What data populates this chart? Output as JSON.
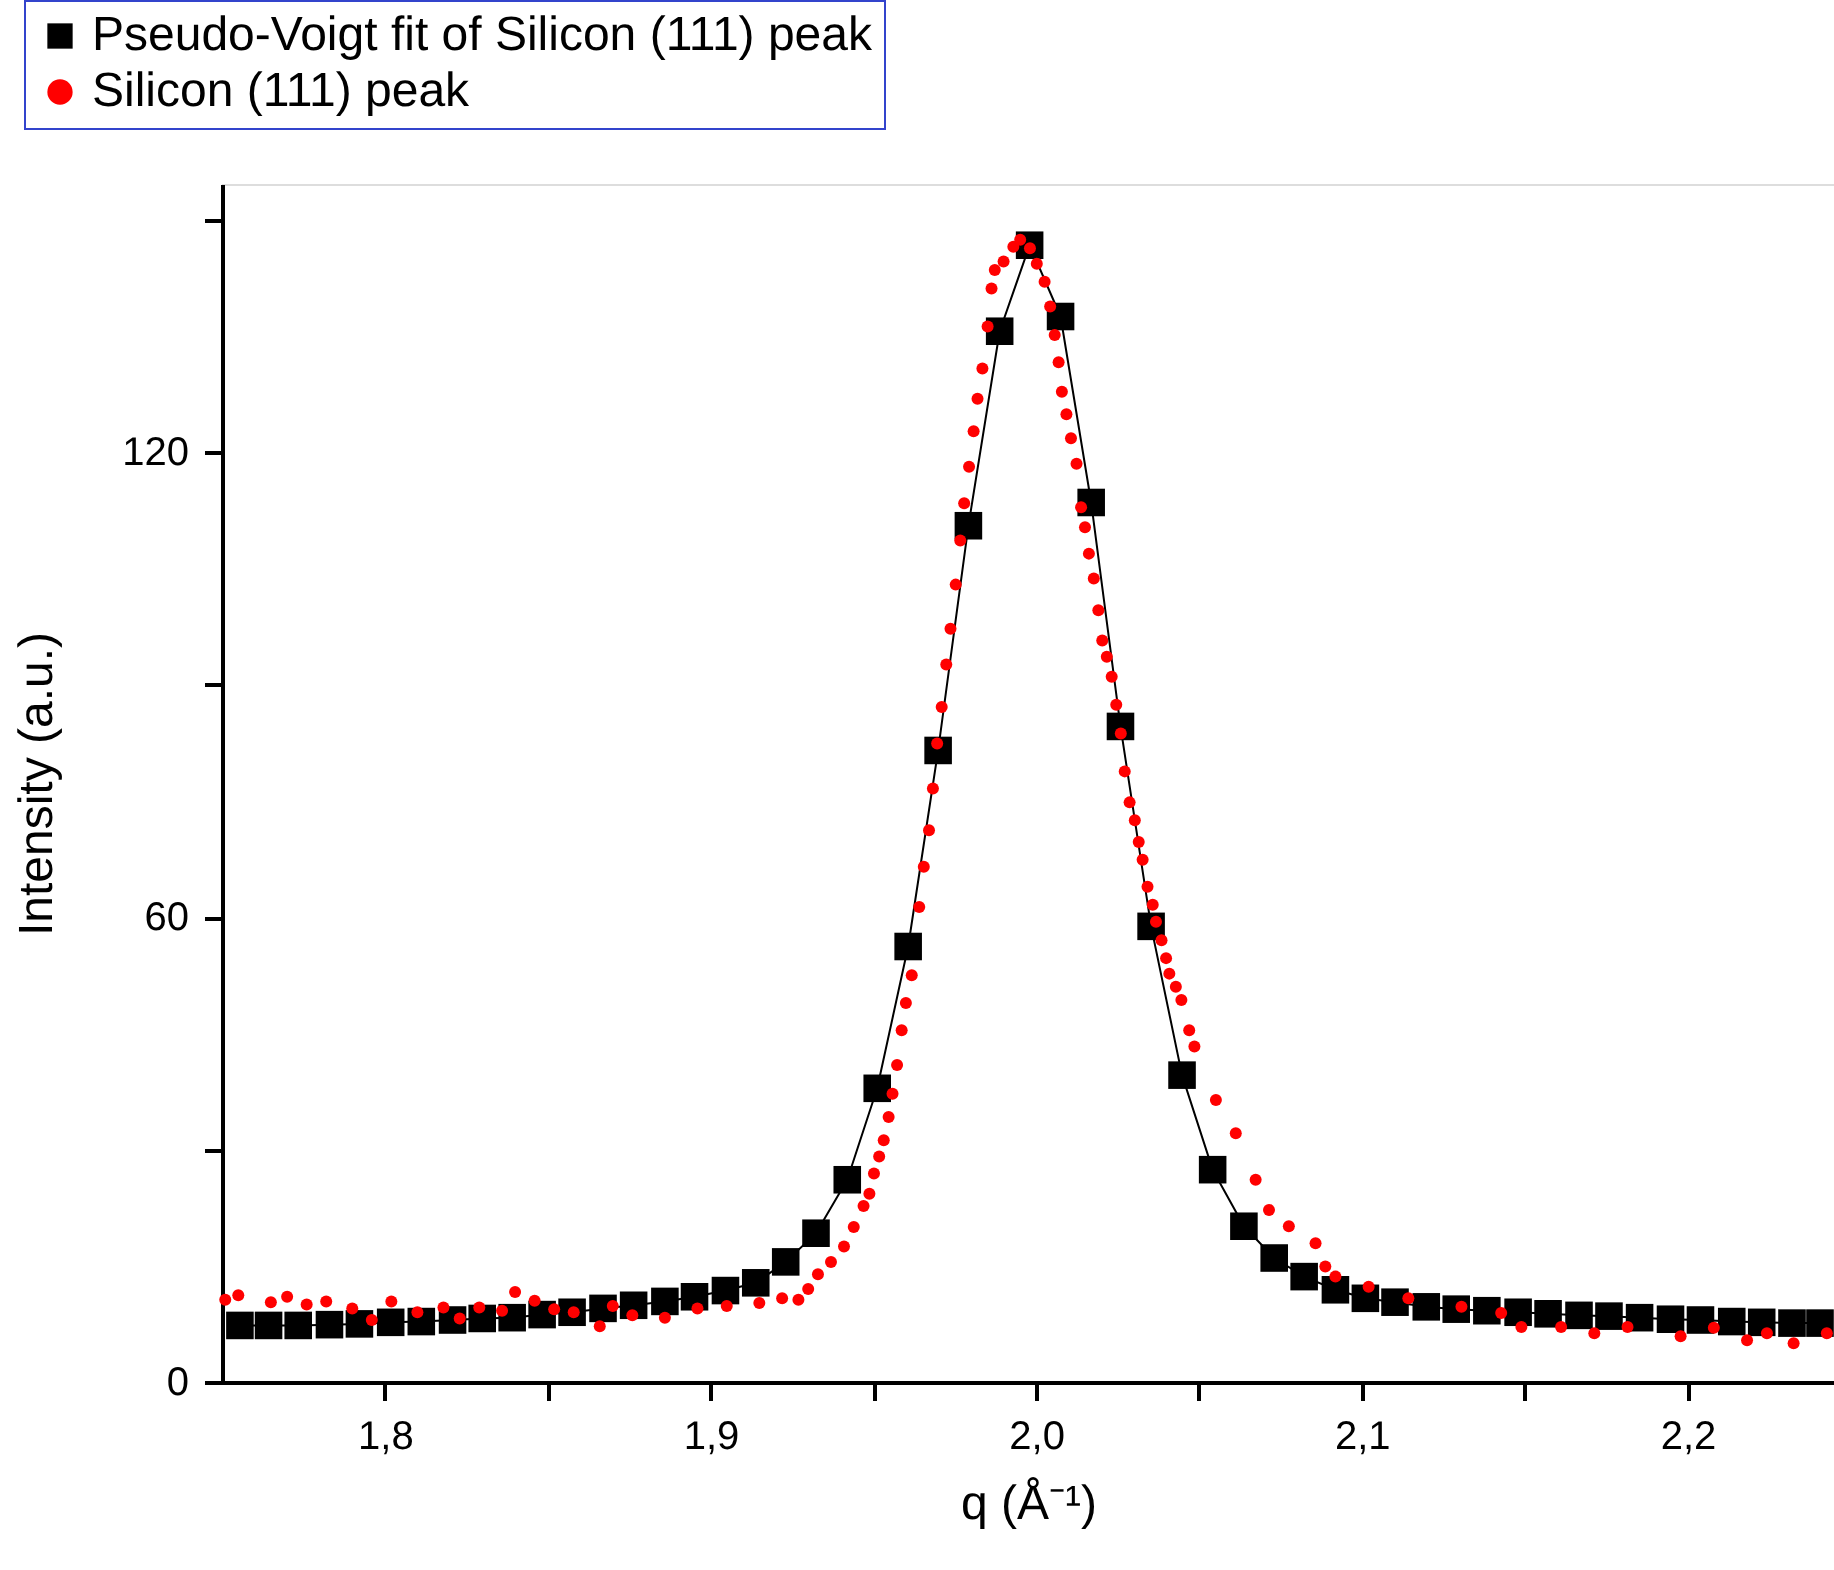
{
  "chart_data": {
    "type": "scatter",
    "xlabel": "q (Å⁻¹)",
    "ylabel": "Intensity (a.u.)",
    "xlim": [
      1.75,
      2.245
    ],
    "ylim": [
      0,
      154.6
    ],
    "xticks": [
      {
        "value": 1.8,
        "label": "1,8"
      },
      {
        "value": 1.85,
        "label": null
      },
      {
        "value": 1.9,
        "label": "1,9"
      },
      {
        "value": 1.95,
        "label": null
      },
      {
        "value": 2.0,
        "label": "2,0"
      },
      {
        "value": 2.05,
        "label": null
      },
      {
        "value": 2.1,
        "label": "2,1"
      },
      {
        "value": 2.15,
        "label": null
      },
      {
        "value": 2.2,
        "label": "2,2"
      }
    ],
    "yticks": [
      0,
      {
        "value": 30,
        "label": null
      },
      60,
      {
        "value": 90,
        "label": null
      },
      120,
      {
        "value": 150,
        "label": null
      }
    ],
    "legend": "top left",
    "grid": false,
    "series": [
      {
        "name": "Pseudo-Voigt fit of Silicon (111) peak",
        "type": "line",
        "marker": "square",
        "line_style": "solid",
        "color": "#000000",
        "x": [
          1.7555,
          1.7643,
          1.7734,
          1.783,
          1.7922,
          1.8018,
          1.8112,
          1.8208,
          1.8299,
          1.8391,
          1.8483,
          1.8575,
          1.867,
          1.8764,
          1.886,
          1.8951,
          1.9046,
          1.9139,
          1.9231,
          1.9324,
          1.942,
          1.9512,
          1.9607,
          1.9699,
          1.9792,
          1.9888,
          1.998,
          2.0075,
          2.0169,
          2.0259,
          2.0353,
          2.0448,
          2.0542,
          2.0638,
          2.0731,
          2.0823,
          2.0919,
          2.1011,
          2.1102,
          2.1198,
          2.129,
          2.1384,
          2.148,
          2.1572,
          2.1667,
          2.1759,
          2.1853,
          2.1948,
          2.204,
          2.2136,
          2.2228,
          2.2321,
          2.2407
        ],
        "values": [
          7.3,
          7.3,
          7.3,
          7.4,
          7.5,
          7.7,
          7.8,
          8.0,
          8.2,
          8.3,
          8.7,
          9.0,
          9.5,
          9.9,
          10.4,
          11.0,
          11.8,
          12.8,
          15.5,
          19.2,
          26.1,
          37.9,
          56.2,
          81.5,
          110.5,
          135.6,
          146.7,
          137.5,
          113.5,
          84.6,
          58.8,
          39.6,
          27.4,
          20.1,
          16.0,
          13.6,
          11.9,
          10.8,
          10.3,
          9.7,
          9.4,
          9.2,
          9.0,
          8.8,
          8.6,
          8.5,
          8.3,
          8.1,
          8.0,
          7.8,
          7.7,
          7.6,
          7.6
        ]
      },
      {
        "name": "Silicon (111) peak",
        "type": "scatter",
        "marker": "circle",
        "color": "#ff0000",
        "x": [
          1.751,
          1.755,
          1.765,
          1.77,
          1.776,
          1.782,
          1.79,
          1.796,
          1.802,
          1.81,
          1.818,
          1.823,
          1.829,
          1.836,
          1.84,
          1.846,
          1.852,
          1.858,
          1.866,
          1.87,
          1.876,
          1.886,
          1.896,
          1.905,
          1.915,
          1.922,
          1.927,
          1.93,
          1.933,
          1.937,
          1.941,
          1.944,
          1.947,
          1.9488,
          1.9502,
          1.9518,
          1.9532,
          1.9547,
          1.9559,
          1.9573,
          1.9587,
          1.96,
          1.9618,
          1.9641,
          1.9655,
          1.9671,
          1.9683,
          1.9696,
          1.971,
          1.9724,
          1.9737,
          1.9753,
          1.9767,
          1.9779,
          1.9794,
          1.9808,
          1.982,
          1.9835,
          1.9851,
          1.9863,
          1.9873,
          1.99,
          1.993,
          1.9951,
          1.9981,
          2.0002,
          2.0026,
          2.0043,
          2.0057,
          2.0069,
          2.0079,
          2.0093,
          2.0107,
          2.0124,
          2.0138,
          2.015,
          2.0162,
          2.0177,
          2.0191,
          2.0203,
          2.0217,
          2.0232,
          2.0246,
          2.026,
          2.0272,
          2.0287,
          2.0303,
          2.0315,
          2.0327,
          2.0342,
          2.0358,
          2.0368,
          2.0385,
          2.0399,
          2.0409,
          2.0429,
          2.0446,
          2.047,
          2.0486,
          2.0552,
          2.0613,
          2.0674,
          2.0715,
          2.0776,
          2.0858,
          2.0888,
          2.0919,
          2.1021,
          2.1143,
          2.1306,
          2.1428,
          2.149,
          2.1612,
          2.1714,
          2.1816,
          2.1979,
          2.2081,
          2.2183,
          2.2244,
          2.2326,
          2.2428
        ],
        "values": [
          10.6,
          11.2,
          10.3,
          11.0,
          10.0,
          10.4,
          9.5,
          8.0,
          10.4,
          9.0,
          9.6,
          8.2,
          9.6,
          9.2,
          11.6,
          10.5,
          9.4,
          9.0,
          7.2,
          9.8,
          8.6,
          8.3,
          9.5,
          9.8,
          10.2,
          10.8,
          10.6,
          12.0,
          13.9,
          15.5,
          17.5,
          20.0,
          22.7,
          24.3,
          26.9,
          29.1,
          31.2,
          34.2,
          37.2,
          40.9,
          45.4,
          48.9,
          52.5,
          61.3,
          66.5,
          71.2,
          76.6,
          82.4,
          87.1,
          92.6,
          97.2,
          102.9,
          108.6,
          113.4,
          118.1,
          122.7,
          126.9,
          130.8,
          136.2,
          141.1,
          143.5,
          144.6,
          146.5,
          147.4,
          146.3,
          144.3,
          142.0,
          138.8,
          135.1,
          131.6,
          127.8,
          124.9,
          121.8,
          118.5,
          112.9,
          110.3,
          106.9,
          103.7,
          99.6,
          95.7,
          93.6,
          91.0,
          87.4,
          83.7,
          78.8,
          74.8,
          72.5,
          69.7,
          67.4,
          63.9,
          61.6,
          59.4,
          57.0,
          54.7,
          52.7,
          51.0,
          49.3,
          45.4,
          43.3,
          36.4,
          32.1,
          26.1,
          22.2,
          20.1,
          17.9,
          14.9,
          13.6,
          12.3,
          10.8,
          9.7,
          8.9,
          7.1,
          7.1,
          6.3,
          7.1,
          5.9,
          7.0,
          5.4,
          6.3,
          5.0,
          6.3
        ]
      }
    ]
  }
}
